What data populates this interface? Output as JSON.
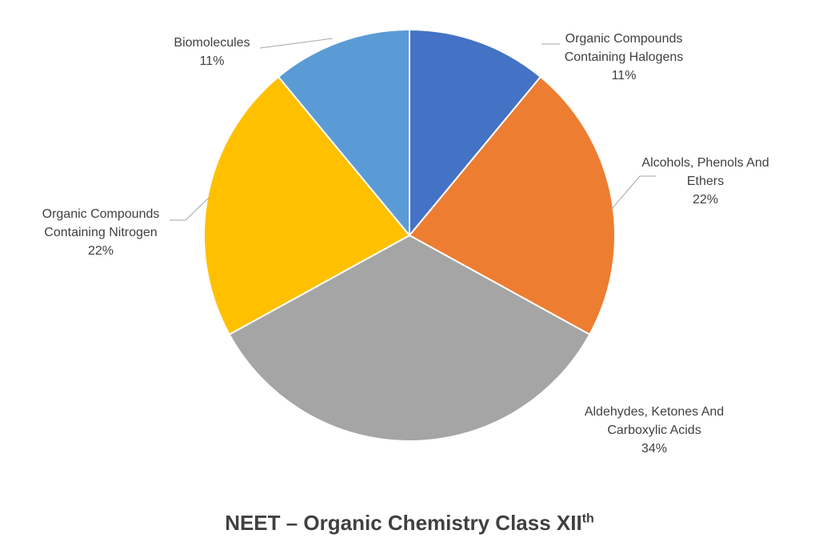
{
  "chart_data": {
    "type": "pie",
    "title": "NEET – Organic Chemistry Class XII",
    "title_superscript": "th",
    "start_angle": "12 o'clock",
    "direction": "clockwise",
    "slices": [
      {
        "label_lines": [
          "Organic Compounds",
          "Containing Halogens"
        ],
        "value": 11,
        "display": "11%",
        "color": "#4472c4"
      },
      {
        "label_lines": [
          "Alcohols, Phenols And",
          "Ethers"
        ],
        "value": 22,
        "display": "22%",
        "color": "#ed7d31"
      },
      {
        "label_lines": [
          "Aldehydes, Ketones And",
          "Carboxylic Acids"
        ],
        "value": 34,
        "display": "34%",
        "color": "#a5a5a5"
      },
      {
        "label_lines": [
          "Organic Compounds",
          "Containing Nitrogen"
        ],
        "value": 22,
        "display": "22%",
        "color": "#ffc000"
      },
      {
        "label_lines": [
          "Biomolecules"
        ],
        "value": 11,
        "display": "11%",
        "color": "#5b9bd5"
      }
    ]
  }
}
